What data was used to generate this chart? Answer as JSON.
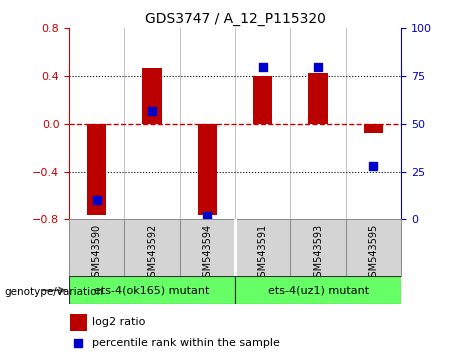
{
  "title": "GDS3747 / A_12_P115320",
  "samples": [
    "GSM543590",
    "GSM543592",
    "GSM543594",
    "GSM543591",
    "GSM543593",
    "GSM543595"
  ],
  "log2_ratio": [
    -0.76,
    0.47,
    -0.76,
    0.4,
    0.43,
    -0.08
  ],
  "percentile_rank": [
    10,
    57,
    2,
    80,
    80,
    28
  ],
  "ylim_left": [
    -0.8,
    0.8
  ],
  "ylim_right": [
    0,
    100
  ],
  "yticks_left": [
    -0.8,
    -0.4,
    0,
    0.4,
    0.8
  ],
  "yticks_right": [
    0,
    25,
    50,
    75,
    100
  ],
  "group1_label": "ets-4(ok165) mutant",
  "group2_label": "ets-4(uz1) mutant",
  "group1_indices": [
    0,
    1,
    2
  ],
  "group2_indices": [
    3,
    4,
    5
  ],
  "group_color": "#66FF66",
  "sample_box_color": "#d4d4d4",
  "bar_color": "#bb0000",
  "dot_color": "#0000cc",
  "zero_line_color": "#cc0000",
  "left_axis_color": "#cc0000",
  "right_axis_color": "#0000cc",
  "bar_width": 0.35,
  "dot_size": 40,
  "legend_log2_label": "log2 ratio",
  "legend_pct_label": "percentile rank within the sample",
  "genotype_label": "genotype/variation"
}
